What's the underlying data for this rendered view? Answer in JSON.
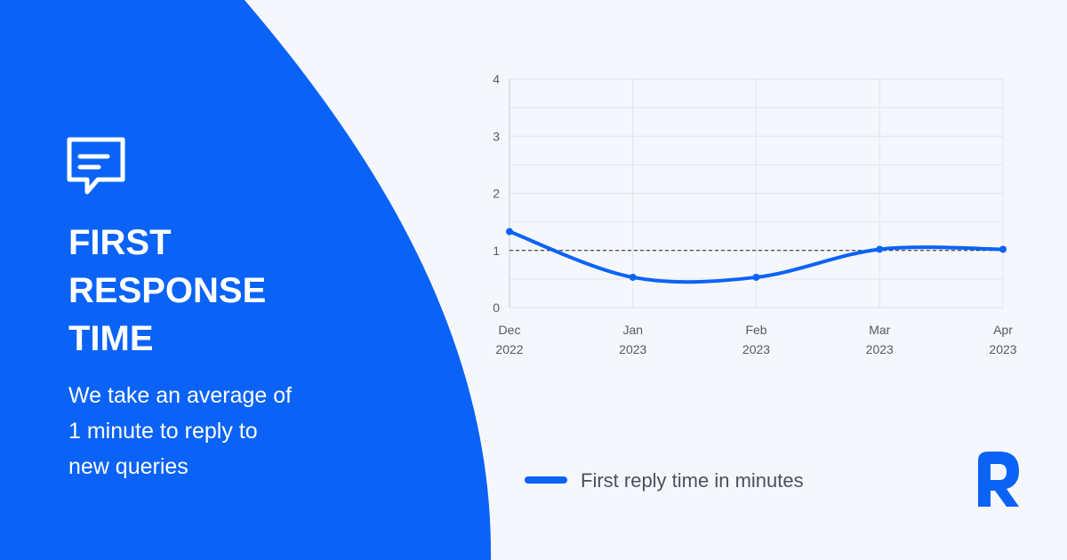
{
  "panel": {
    "heading_lines": [
      "FIRST",
      "RESPONSE",
      "TIME"
    ],
    "text_lines": [
      "We take an average of",
      "1 minute to reply to",
      "new queries"
    ]
  },
  "chart_data": {
    "type": "line",
    "categories": [
      [
        "Dec",
        "2022"
      ],
      [
        "Jan",
        "2023"
      ],
      [
        "Feb",
        "2023"
      ],
      [
        "Mar",
        "2023"
      ],
      [
        "Apr",
        "2023"
      ]
    ],
    "series": [
      {
        "name": "First reply time in minutes",
        "color": "#0a63f6",
        "values": [
          1.33,
          0.53,
          0.53,
          1.02,
          1.02
        ]
      }
    ],
    "ylim": [
      0,
      4
    ],
    "yticks": [
      0,
      1,
      2,
      3,
      4
    ],
    "y_minor_grid": [
      0.5,
      1.5,
      2.5,
      3.5
    ],
    "grid": true,
    "reference_line": 1
  }
}
